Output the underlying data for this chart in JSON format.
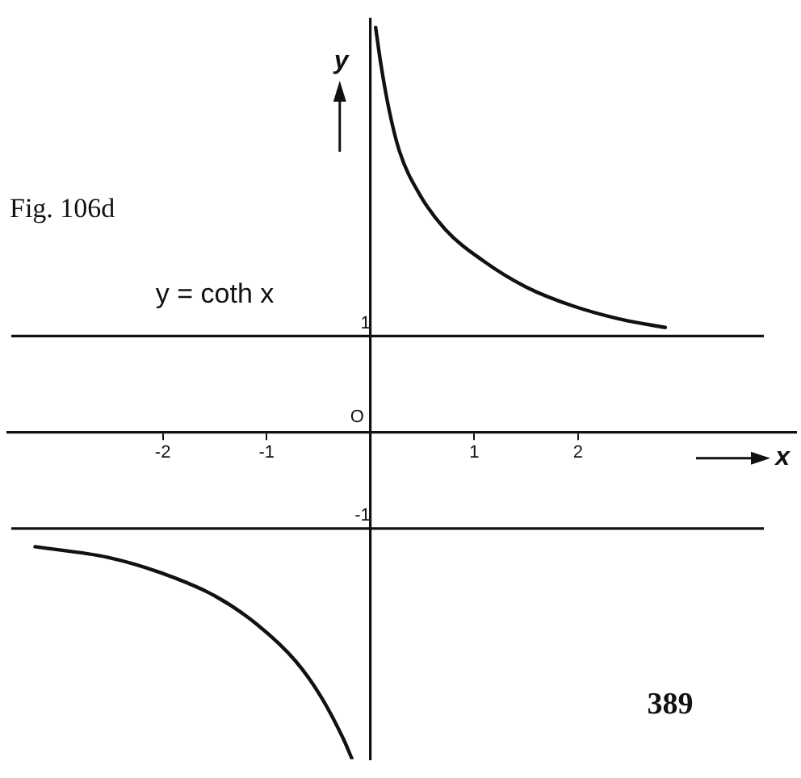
{
  "chart_data": {
    "type": "line",
    "title": "Fig. 106d",
    "xlabel": "x",
    "ylabel": "y",
    "x": [
      -3.23,
      -2.53,
      -2.02,
      -1.5,
      -1.09,
      -0.72,
      -0.47,
      -0.26,
      -0.18,
      null,
      0.05,
      0.1,
      0.18,
      0.28,
      0.47,
      0.72,
      1.09,
      1.5,
      1.96,
      2.43,
      2.84
    ],
    "series": [
      {
        "color": "#111111",
        "values": [
          -1.19,
          -1.3,
          -1.46,
          -1.7,
          -2.0,
          -2.38,
          -2.76,
          -3.19,
          -3.39,
          null,
          4.21,
          3.83,
          3.35,
          2.92,
          2.48,
          2.11,
          1.78,
          1.51,
          1.31,
          1.17,
          1.09
        ]
      }
    ],
    "xlim": [
      -3.49,
      4.1
    ],
    "ylim": [
      -3.4,
      4.3
    ],
    "xticks": [
      -2,
      -1,
      1,
      2
    ],
    "yticks": [
      -1,
      1
    ],
    "ref_lines": [
      {
        "axis": "y",
        "value": 1,
        "color": "#111111"
      },
      {
        "axis": "y",
        "value": -1,
        "color": "#111111"
      }
    ],
    "annotations": [
      "O",
      "y = coth x",
      "389"
    ],
    "grid": false,
    "legend": false,
    "marker": "none",
    "line_style": "solid"
  }
}
